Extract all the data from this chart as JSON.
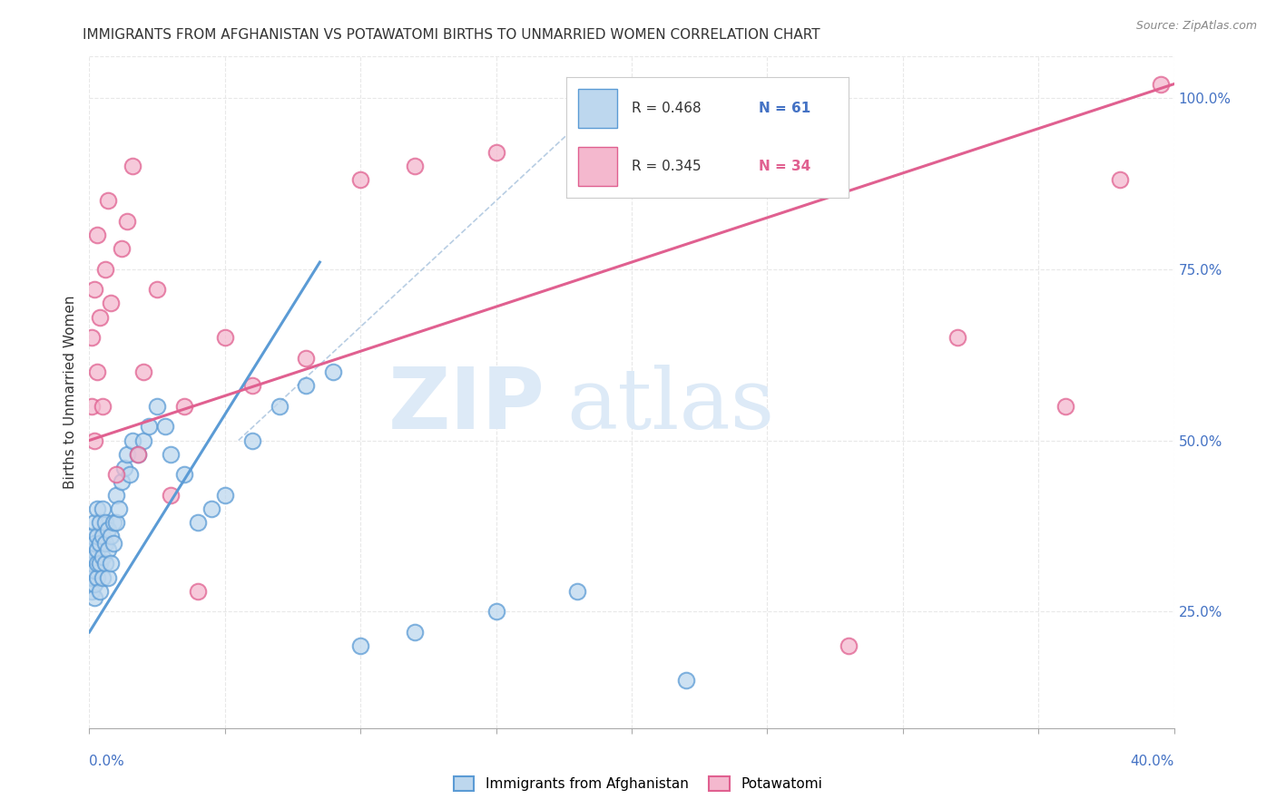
{
  "title": "IMMIGRANTS FROM AFGHANISTAN VS POTAWATOMI BIRTHS TO UNMARRIED WOMEN CORRELATION CHART",
  "source": "Source: ZipAtlas.com",
  "ylabel": "Births to Unmarried Women",
  "ylabel_right_ticks": [
    "100.0%",
    "75.0%",
    "50.0%",
    "25.0%"
  ],
  "ylabel_right_vals": [
    1.0,
    0.75,
    0.5,
    0.25
  ],
  "xmin": 0.0,
  "xmax": 0.4,
  "ymin": 0.08,
  "ymax": 1.06,
  "legend_R1": "R = 0.468",
  "legend_N1": "N = 61",
  "legend_R2": "R = 0.345",
  "legend_N2": "N = 34",
  "legend_label1": "Immigrants from Afghanistan",
  "legend_label2": "Potawatomi",
  "blue_color": "#5b9bd5",
  "blue_face": "#bdd7ee",
  "pink_color": "#e06090",
  "pink_face": "#f4b8ce",
  "watermark_color": "#ddeaf7",
  "blue_scatter_x": [
    0.001,
    0.001,
    0.001,
    0.001,
    0.001,
    0.002,
    0.002,
    0.002,
    0.002,
    0.002,
    0.002,
    0.003,
    0.003,
    0.003,
    0.003,
    0.003,
    0.004,
    0.004,
    0.004,
    0.004,
    0.005,
    0.005,
    0.005,
    0.005,
    0.006,
    0.006,
    0.006,
    0.007,
    0.007,
    0.007,
    0.008,
    0.008,
    0.009,
    0.009,
    0.01,
    0.01,
    0.011,
    0.012,
    0.013,
    0.014,
    0.015,
    0.016,
    0.018,
    0.02,
    0.022,
    0.025,
    0.028,
    0.03,
    0.035,
    0.04,
    0.045,
    0.05,
    0.06,
    0.07,
    0.08,
    0.09,
    0.1,
    0.12,
    0.15,
    0.18,
    0.22
  ],
  "blue_scatter_y": [
    0.28,
    0.3,
    0.32,
    0.34,
    0.36,
    0.27,
    0.29,
    0.31,
    0.33,
    0.35,
    0.38,
    0.3,
    0.32,
    0.34,
    0.36,
    0.4,
    0.28,
    0.32,
    0.35,
    0.38,
    0.3,
    0.33,
    0.36,
    0.4,
    0.32,
    0.35,
    0.38,
    0.3,
    0.34,
    0.37,
    0.32,
    0.36,
    0.35,
    0.38,
    0.38,
    0.42,
    0.4,
    0.44,
    0.46,
    0.48,
    0.45,
    0.5,
    0.48,
    0.5,
    0.52,
    0.55,
    0.52,
    0.48,
    0.45,
    0.38,
    0.4,
    0.42,
    0.5,
    0.55,
    0.58,
    0.6,
    0.2,
    0.22,
    0.25,
    0.28,
    0.15
  ],
  "pink_scatter_x": [
    0.001,
    0.001,
    0.002,
    0.002,
    0.003,
    0.003,
    0.004,
    0.005,
    0.006,
    0.007,
    0.008,
    0.01,
    0.012,
    0.014,
    0.016,
    0.018,
    0.02,
    0.025,
    0.03,
    0.035,
    0.04,
    0.05,
    0.06,
    0.08,
    0.1,
    0.12,
    0.15,
    0.18,
    0.22,
    0.28,
    0.32,
    0.36,
    0.38,
    0.395
  ],
  "pink_scatter_y": [
    0.55,
    0.65,
    0.5,
    0.72,
    0.6,
    0.8,
    0.68,
    0.55,
    0.75,
    0.85,
    0.7,
    0.45,
    0.78,
    0.82,
    0.9,
    0.48,
    0.6,
    0.72,
    0.42,
    0.55,
    0.28,
    0.65,
    0.58,
    0.62,
    0.88,
    0.9,
    0.92,
    0.96,
    0.95,
    0.2,
    0.65,
    0.55,
    0.88,
    1.02
  ],
  "blue_line_x": [
    0.0,
    0.085
  ],
  "blue_line_y": [
    0.22,
    0.76
  ],
  "pink_line_x": [
    0.0,
    0.4
  ],
  "pink_line_y": [
    0.5,
    1.02
  ],
  "diag_line_x": [
    0.055,
    0.18
  ],
  "diag_line_y": [
    0.5,
    0.96
  ],
  "grid_color": "#e8e8e8",
  "title_fontsize": 11,
  "axis_label_color": "#4472c4"
}
